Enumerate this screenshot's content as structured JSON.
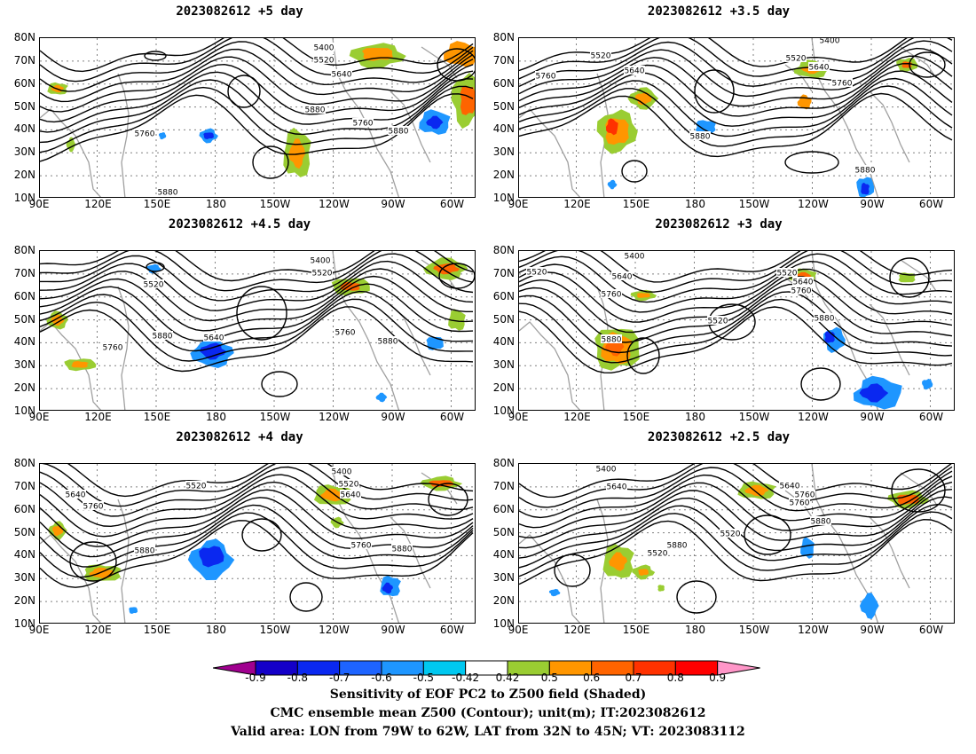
{
  "panels": [
    {
      "title": "2023082612 +5 day",
      "contour_labels": [
        "5400",
        "5520",
        "5640",
        "5760",
        "5880",
        "5760",
        "5880",
        "5880"
      ]
    },
    {
      "title": "2023082612 +3.5 day",
      "contour_labels": [
        "5400",
        "5520",
        "5640",
        "5760",
        "5520",
        "5640",
        "5760",
        "5880",
        "5880"
      ]
    },
    {
      "title": "2023082612 +4.5 day",
      "contour_labels": [
        "5400",
        "5520",
        "5520",
        "5760",
        "5880",
        "5640",
        "5760",
        "5880"
      ]
    },
    {
      "title": "2023082612 +3 day",
      "contour_labels": [
        "5400",
        "5520",
        "5640",
        "5760",
        "5880",
        "5520",
        "5520",
        "5640",
        "5760",
        "5880"
      ]
    },
    {
      "title": "2023082612 +4 day",
      "contour_labels": [
        "5400",
        "5520",
        "5520",
        "5640",
        "5760",
        "5640",
        "5880",
        "5760",
        "5880"
      ]
    },
    {
      "title": "2023082612 +2.5 day",
      "contour_labels": [
        "5400",
        "5640",
        "5520",
        "5640",
        "5760",
        "5760",
        "5880",
        "5520",
        "5880"
      ]
    }
  ],
  "axes": {
    "lat_ticks": [
      "80N",
      "70N",
      "60N",
      "50N",
      "40N",
      "30N",
      "20N",
      "10N"
    ],
    "lon_ticks": [
      "90E",
      "120E",
      "150E",
      "180",
      "150W",
      "120W",
      "90W",
      "60W"
    ]
  },
  "colorbar": {
    "labels": [
      "-0.9",
      "-0.8",
      "-0.7",
      "-0.6",
      "-0.5",
      "-0.42",
      "0.42",
      "0.5",
      "0.6",
      "0.7",
      "0.8",
      "0.9"
    ],
    "colors": [
      "#a0008f",
      "#1400c8",
      "#0a28f0",
      "#1e64ff",
      "#1e96ff",
      "#00c8f0",
      "#ffffff",
      "#9acd32",
      "#ff9600",
      "#ff6400",
      "#ff3200",
      "#ff0000",
      "#ff96c8"
    ]
  },
  "captions": {
    "line1": "Sensitivity of EOF PC2 to Z500 field (Shaded)",
    "line2": "CMC ensemble mean Z500 (Contour); unit(m); IT:2023082612",
    "line3": "Valid area: LON from 79W to 62W, LAT from 32N to 45N; VT: 2023083112"
  },
  "colors": {
    "contour": "#000000",
    "coastline": "#a0a0a0",
    "grid": "#808080"
  }
}
